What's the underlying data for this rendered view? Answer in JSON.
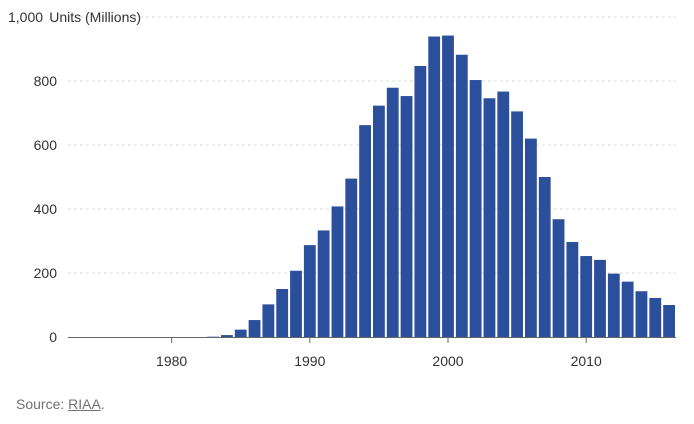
{
  "chart_data": {
    "type": "bar",
    "ylabel_unit": "Units (Millions)",
    "ylim": [
      0,
      1000
    ],
    "y_ticks": [
      0,
      200,
      400,
      600,
      800,
      1000
    ],
    "y_tick_labels": [
      "0",
      "200",
      "400",
      "600",
      "800",
      "1,000"
    ],
    "x_range": [
      1973,
      2016
    ],
    "x_ticks": [
      1980,
      1990,
      2000,
      2010
    ],
    "x_tick_labels": [
      "1980",
      "1990",
      "2000",
      "2010"
    ],
    "grid": "horizontal-dashed",
    "bar_color": "#2b4f9b",
    "x": [
      1973,
      1974,
      1975,
      1976,
      1977,
      1978,
      1979,
      1980,
      1981,
      1982,
      1983,
      1984,
      1985,
      1986,
      1987,
      1988,
      1989,
      1990,
      1991,
      1992,
      1993,
      1994,
      1995,
      1996,
      1997,
      1998,
      1999,
      2000,
      2001,
      2002,
      2003,
      2004,
      2005,
      2006,
      2007,
      2008,
      2009,
      2010,
      2011,
      2012,
      2013,
      2014,
      2015,
      2016
    ],
    "values": [
      0,
      0,
      0,
      0,
      0,
      0,
      0,
      0,
      0,
      0,
      1,
      6,
      23,
      53,
      102,
      150,
      207,
      287,
      333,
      408,
      495,
      662,
      723,
      779,
      753,
      847,
      939,
      942,
      882,
      803,
      746,
      767,
      705,
      620,
      500,
      368,
      297,
      253,
      241,
      198,
      173,
      143,
      122,
      100
    ]
  },
  "source": {
    "prefix": "Source: ",
    "link": "RIAA",
    "suffix": "."
  }
}
